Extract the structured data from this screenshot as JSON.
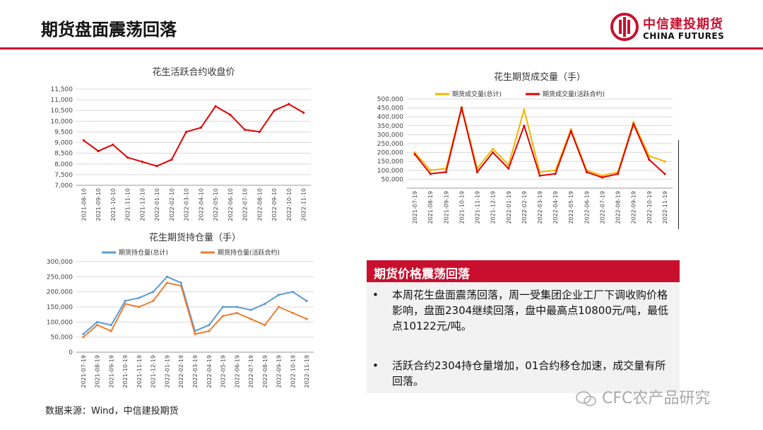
{
  "header": {
    "title": "期货盘面震荡回落"
  },
  "logo": {
    "cn": "中信建投期货",
    "en": "CHINA FUTURES"
  },
  "colors": {
    "brand_red": "#c8102e",
    "orange": "#f5b400",
    "blue": "#5b9bd5",
    "orange2": "#ed7d31",
    "close_red": "#e00000"
  },
  "info_box": {
    "title": "期货价格震荡回落",
    "bullet_symbol": "•",
    "bullets": [
      "本周花生盘面震荡回落，周一受集团企业工厂下调收购价格影响，盘面2304继续回落，盘中最高点10800元/吨，最低点10122元/吨。",
      "活跃合约2304持仓量增加，01合约移仓加速，成交量有所回落。"
    ]
  },
  "source": "数据来源：Wind，中信建投期货",
  "watermark": "CFC农产品研究",
  "chart_data": [
    {
      "type": "line",
      "title": "花生活跃合约收盘价",
      "x": [
        "2021-08-10",
        "2021-09-10",
        "2021-10-10",
        "2021-11-10",
        "2021-12-10",
        "2022-01-10",
        "2022-02-10",
        "2022-03-10",
        "2022-04-10",
        "2022-05-10",
        "2022-06-10",
        "2022-07-10",
        "2022-08-10",
        "2022-09-10",
        "2022-10-10",
        "2022-11-10"
      ],
      "ylim": [
        7000,
        11500
      ],
      "yticks": [
        "11,500",
        "11,000",
        "10,500",
        "10,000",
        "9,500",
        "9,000",
        "8,500",
        "8,000",
        "7,500",
        "7,000"
      ],
      "series": [
        {
          "values": [
            9100,
            8600,
            8900,
            8300,
            8100,
            7900,
            8200,
            9500,
            9700,
            10700,
            10300,
            9600,
            9500,
            10500,
            10800,
            10400
          ]
        }
      ]
    },
    {
      "type": "line",
      "title": "花生期货成交量（手）",
      "x": [
        "2021-07-19",
        "2021-08-19",
        "2021-09-19",
        "2021-10-19",
        "2021-11-19",
        "2021-12-19",
        "2022-01-19",
        "2022-02-19",
        "2022-03-19",
        "2022-04-19",
        "2022-05-19",
        "2022-06-19",
        "2022-07-19",
        "2022-08-19",
        "2022-09-19",
        "2022-10-19",
        "2022-11-19"
      ],
      "ylim": [
        0,
        500000
      ],
      "yticks": [
        "500,000",
        "450,000",
        "400,000",
        "350,000",
        "300,000",
        "250,000",
        "200,000",
        "150,000",
        "100,000",
        "50,000"
      ],
      "series": [
        {
          "name": "期货成交量(总计)",
          "values": [
            200000,
            100000,
            110000,
            455000,
            110000,
            220000,
            130000,
            440000,
            90000,
            100000,
            330000,
            100000,
            70000,
            90000,
            370000,
            180000,
            150000
          ]
        },
        {
          "name": "期货成交量(活跃合约)",
          "values": [
            190000,
            80000,
            90000,
            450000,
            90000,
            200000,
            110000,
            350000,
            70000,
            80000,
            320000,
            90000,
            60000,
            80000,
            360000,
            160000,
            80000
          ]
        }
      ]
    },
    {
      "type": "line",
      "title": "花生期货持仓量（手）",
      "x": [
        "2021-07-19",
        "2021-08-19",
        "2021-09-19",
        "2021-10-19",
        "2021-11-19",
        "2021-12-19",
        "2022-01-19",
        "2022-02-19",
        "2022-03-19",
        "2022-04-19",
        "2022-05-19",
        "2022-06-19",
        "2022-07-19",
        "2022-08-19",
        "2022-09-19",
        "2022-10-19",
        "2022-11-19"
      ],
      "ylim": [
        0,
        300000
      ],
      "yticks": [
        "300,000",
        "250,000",
        "200,000",
        "150,000",
        "100,000",
        "50,000",
        "0"
      ],
      "series": [
        {
          "name": "期货持仓量(总计)",
          "values": [
            60000,
            100000,
            90000,
            170000,
            180000,
            200000,
            250000,
            230000,
            70000,
            90000,
            150000,
            150000,
            140000,
            160000,
            190000,
            200000,
            170000
          ]
        },
        {
          "name": "期货持仓量(活跃合约)",
          "values": [
            50000,
            90000,
            70000,
            160000,
            150000,
            170000,
            230000,
            220000,
            60000,
            70000,
            120000,
            130000,
            110000,
            90000,
            150000,
            130000,
            110000
          ]
        }
      ]
    }
  ]
}
